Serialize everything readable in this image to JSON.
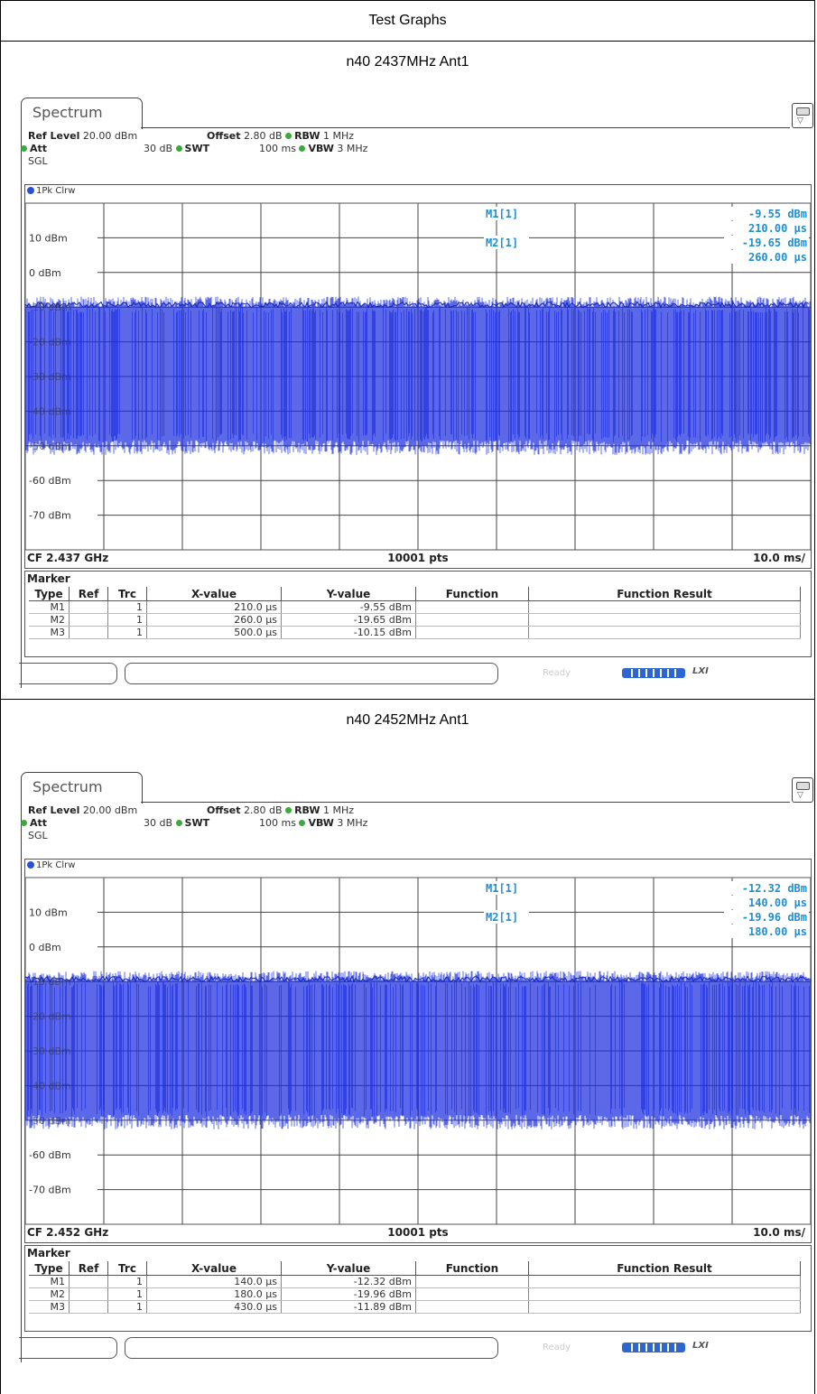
{
  "page": {
    "title": "Test Graphs"
  },
  "sections": [
    {
      "heading": "n40 2437MHz Ant1",
      "analyzer": {
        "tab_label": "Spectrum",
        "params": {
          "ref_level_label": "Ref Level",
          "ref_level_value": "20.00 dBm",
          "offset_label": "Offset",
          "offset_value": "2.80 dB",
          "rbw_label": "RBW",
          "rbw_value": "1 MHz",
          "att_label": "Att",
          "att_value": "30 dB",
          "swt_label": "SWT",
          "swt_value": "100 ms",
          "vbw_label": "VBW",
          "vbw_value": "3 MHz",
          "mode": "SGL"
        },
        "trace_label": "1Pk Clrw",
        "marker_readout": {
          "m1_label": "M1[1]",
          "m1_level": "-9.55 dBm",
          "m1_time": "210.00 µs",
          "m2_label": "M2[1]",
          "m2_level": "-19.65 dBm",
          "m2_time": "260.00 µs"
        },
        "footer": {
          "cf": "CF 2.437 GHz",
          "points": "10001 pts",
          "span": "10.0 ms/"
        },
        "marker_table": {
          "title": "Marker",
          "headers": [
            "Type",
            "Ref",
            "Trc",
            "X-value",
            "Y-value",
            "Function",
            "Function Result"
          ],
          "rows": [
            {
              "type": "M1",
              "ref": "",
              "trc": "1",
              "x": "210.0 µs",
              "y": "-9.55 dBm",
              "function": "",
              "result": ""
            },
            {
              "type": "M2",
              "ref": "",
              "trc": "1",
              "x": "260.0 µs",
              "y": "-19.65 dBm",
              "function": "",
              "result": ""
            },
            {
              "type": "M3",
              "ref": "",
              "trc": "1",
              "x": "500.0 µs",
              "y": "-10.15 dBm",
              "function": "",
              "result": ""
            }
          ]
        },
        "status": {
          "ready": "Ready",
          "lxi": "LXI"
        }
      }
    },
    {
      "heading": "n40 2452MHz Ant1",
      "analyzer": {
        "tab_label": "Spectrum",
        "params": {
          "ref_level_label": "Ref Level",
          "ref_level_value": "20.00 dBm",
          "offset_label": "Offset",
          "offset_value": "2.80 dB",
          "rbw_label": "RBW",
          "rbw_value": "1 MHz",
          "att_label": "Att",
          "att_value": "30 dB",
          "swt_label": "SWT",
          "swt_value": "100 ms",
          "vbw_label": "VBW",
          "vbw_value": "3 MHz",
          "mode": "SGL"
        },
        "trace_label": "1Pk Clrw",
        "marker_readout": {
          "m1_label": "M1[1]",
          "m1_level": "-12.32 dBm",
          "m1_time": "140.00 µs",
          "m2_label": "M2[1]",
          "m2_level": "-19.96 dBm",
          "m2_time": "180.00 µs"
        },
        "footer": {
          "cf": "CF 2.452 GHz",
          "points": "10001 pts",
          "span": "10.0 ms/"
        },
        "marker_table": {
          "title": "Marker",
          "headers": [
            "Type",
            "Ref",
            "Trc",
            "X-value",
            "Y-value",
            "Function",
            "Function Result"
          ],
          "rows": [
            {
              "type": "M1",
              "ref": "",
              "trc": "1",
              "x": "140.0 µs",
              "y": "-12.32 dBm",
              "function": "",
              "result": ""
            },
            {
              "type": "M2",
              "ref": "",
              "trc": "1",
              "x": "180.0 µs",
              "y": "-19.96 dBm",
              "function": "",
              "result": ""
            },
            {
              "type": "M3",
              "ref": "",
              "trc": "1",
              "x": "430.0 µs",
              "y": "-11.89 dBm",
              "function": "",
              "result": ""
            }
          ]
        },
        "status": {
          "ready": "Ready",
          "lxi": "LXI"
        }
      }
    }
  ],
  "chart_data": [
    {
      "type": "line",
      "title": "n40 2437MHz Ant1",
      "ylabel": "dBm",
      "y_tick_labels": [
        "10 dBm",
        "0 dBm",
        "-10 dBm",
        "-20 dBm",
        "-30 dBm",
        "-40 dBm",
        "-50 dBm",
        "-60 dBm",
        "-70 dBm"
      ],
      "ylim": [
        -80,
        20
      ],
      "xlim": [
        0,
        100
      ],
      "x_unit": "ms",
      "grid": true,
      "series": [
        {
          "name": "1Pk Clrw",
          "color": "#1d2fe0",
          "peak_dbm": -8,
          "floor_dbm": -50
        }
      ],
      "markers": [
        {
          "name": "M1",
          "x_us": 210.0,
          "y_dbm": -9.55
        },
        {
          "name": "M2",
          "x_us": 260.0,
          "y_dbm": -19.65
        },
        {
          "name": "M3",
          "x_us": 500.0,
          "y_dbm": -10.15
        }
      ]
    },
    {
      "type": "line",
      "title": "n40 2452MHz Ant1",
      "ylabel": "dBm",
      "y_tick_labels": [
        "10 dBm",
        "0 dBm",
        "-10 dBm",
        "-20 dBm",
        "-30 dBm",
        "-40 dBm",
        "-50 dBm",
        "-60 dBm",
        "-70 dBm"
      ],
      "ylim": [
        -80,
        20
      ],
      "xlim": [
        0,
        100
      ],
      "x_unit": "ms",
      "grid": true,
      "series": [
        {
          "name": "1Pk Clrw",
          "color": "#1d2fe0",
          "peak_dbm": -8,
          "floor_dbm": -50
        }
      ],
      "markers": [
        {
          "name": "M1",
          "x_us": 140.0,
          "y_dbm": -12.32
        },
        {
          "name": "M2",
          "x_us": 180.0,
          "y_dbm": -19.96
        },
        {
          "name": "M3",
          "x_us": 430.0,
          "y_dbm": -11.89
        }
      ]
    }
  ],
  "colors": {
    "trace": "#1d2fe0",
    "marker_text": "#1f8fd0",
    "grid": "#444444",
    "status_dot": "#3aaa3a"
  }
}
